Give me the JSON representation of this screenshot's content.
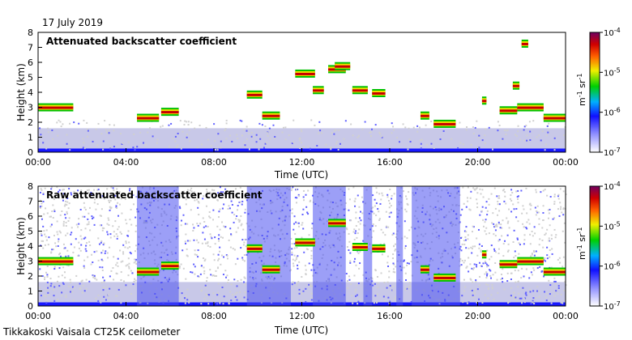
{
  "date": "17 July 2019",
  "footer": "Tikkakoski Vaisala CT25K ceilometer",
  "chart_data": [
    {
      "type": "heatmap",
      "title": "Attenuated backscatter coefficient",
      "xlabel": "Time (UTC)",
      "ylabel": "Height (km)",
      "xlim": [
        0,
        24
      ],
      "ylim": [
        0,
        8
      ],
      "xticks": [
        "00:00",
        "04:00",
        "08:00",
        "12:00",
        "16:00",
        "20:00",
        "00:00"
      ],
      "yticks": [
        "0",
        "1",
        "2",
        "3",
        "4",
        "5",
        "6",
        "7",
        "8"
      ],
      "colorbar": {
        "scale": "log",
        "range": [
          1e-07,
          0.0001
        ],
        "ticks": [
          "10-7",
          "10-6",
          "10-5",
          "10-4"
        ],
        "label": "m-1 sr-1"
      },
      "layers": [
        {
          "t0": 0.0,
          "t1": 1.6,
          "h": 3.05
        },
        {
          "t0": 4.5,
          "t1": 5.5,
          "h": 2.35
        },
        {
          "t0": 5.6,
          "t1": 6.4,
          "h": 2.75
        },
        {
          "t0": 9.5,
          "t1": 10.2,
          "h": 3.9
        },
        {
          "t0": 10.2,
          "t1": 11.0,
          "h": 2.5
        },
        {
          "t0": 11.7,
          "t1": 12.6,
          "h": 5.3
        },
        {
          "t0": 12.5,
          "t1": 13.0,
          "h": 4.2
        },
        {
          "t0": 13.2,
          "t1": 14.0,
          "h": 5.6
        },
        {
          "t0": 13.5,
          "t1": 14.2,
          "h": 5.8
        },
        {
          "t0": 14.3,
          "t1": 15.0,
          "h": 4.2
        },
        {
          "t0": 15.2,
          "t1": 15.8,
          "h": 4.0
        },
        {
          "t0": 17.4,
          "t1": 17.8,
          "h": 2.5
        },
        {
          "t0": 18.0,
          "t1": 19.0,
          "h": 1.95
        },
        {
          "t0": 20.2,
          "t1": 20.4,
          "h": 3.5
        },
        {
          "t0": 21.0,
          "t1": 21.8,
          "h": 2.85
        },
        {
          "t0": 21.8,
          "t1": 23.0,
          "h": 3.05
        },
        {
          "t0": 23.0,
          "t1": 24.0,
          "h": 2.35
        },
        {
          "t0": 22.0,
          "t1": 22.3,
          "h": 7.3
        },
        {
          "t0": 21.6,
          "t1": 21.9,
          "h": 4.5
        }
      ]
    },
    {
      "type": "heatmap",
      "title": "Raw attenuated backscatter coefficient",
      "xlabel": "Time (UTC)",
      "ylabel": "Height (km)",
      "xlim": [
        0,
        24
      ],
      "ylim": [
        0,
        8
      ],
      "xticks": [
        "00:00",
        "04:00",
        "08:00",
        "12:00",
        "16:00",
        "20:00",
        "00:00"
      ],
      "yticks": [
        "0",
        "1",
        "2",
        "3",
        "4",
        "5",
        "6",
        "7",
        "8"
      ],
      "colorbar": {
        "scale": "log",
        "range": [
          1e-07,
          0.0001
        ],
        "ticks": [
          "10-7",
          "10-6",
          "10-5",
          "10-4"
        ],
        "label": "m-1 sr-1"
      },
      "layers": [
        {
          "t0": 0.0,
          "t1": 1.6,
          "h": 3.05
        },
        {
          "t0": 4.5,
          "t1": 5.5,
          "h": 2.35
        },
        {
          "t0": 5.6,
          "t1": 6.4,
          "h": 2.75
        },
        {
          "t0": 9.5,
          "t1": 10.2,
          "h": 3.9
        },
        {
          "t0": 10.2,
          "t1": 11.0,
          "h": 2.5
        },
        {
          "t0": 11.7,
          "t1": 12.6,
          "h": 4.3
        },
        {
          "t0": 13.2,
          "t1": 14.0,
          "h": 5.6
        },
        {
          "t0": 14.3,
          "t1": 15.0,
          "h": 4.0
        },
        {
          "t0": 15.2,
          "t1": 15.8,
          "h": 3.9
        },
        {
          "t0": 17.4,
          "t1": 17.8,
          "h": 2.5
        },
        {
          "t0": 18.0,
          "t1": 19.0,
          "h": 1.95
        },
        {
          "t0": 20.2,
          "t1": 20.4,
          "h": 3.5
        },
        {
          "t0": 21.0,
          "t1": 21.8,
          "h": 2.85
        },
        {
          "t0": 21.8,
          "t1": 23.0,
          "h": 3.05
        },
        {
          "t0": 23.0,
          "t1": 24.0,
          "h": 2.35
        }
      ]
    }
  ]
}
